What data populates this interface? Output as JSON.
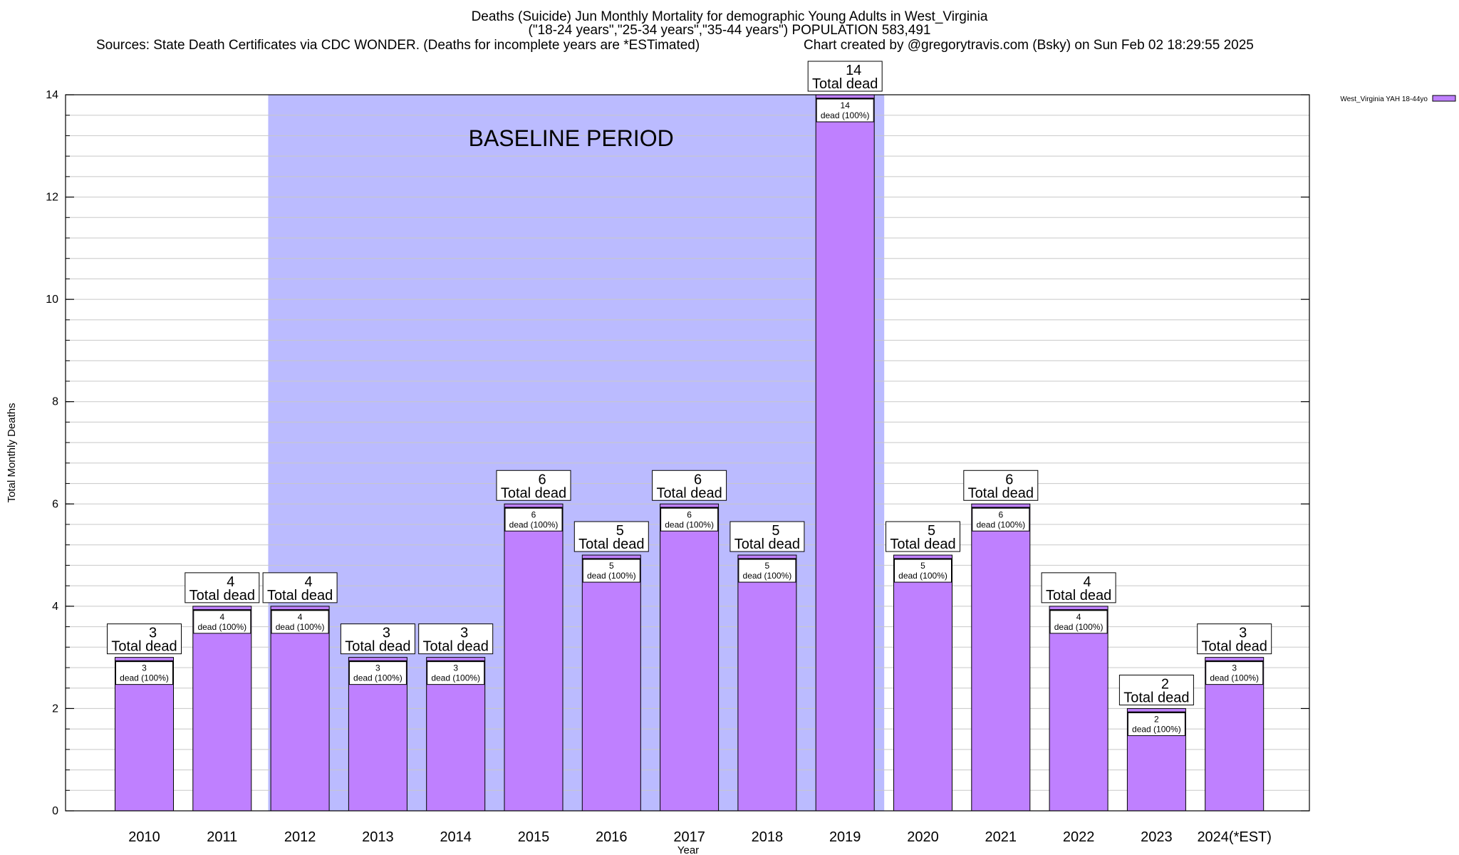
{
  "title": {
    "line1": "Deaths (Suicide) Jun Monthly Mortality for demographic Young Adults in West_Virginia",
    "line2": "(\"18-24 years\",\"25-34 years\",\"35-44 years\") POPULATION 583,491",
    "sources": "Sources: State Death Certificates via CDC WONDER. (Deaths for incomplete years are *ESTimated)",
    "credit": "Chart created by @gregorytravis.com (Bsky) on Sun Feb 02 18:29:55 2025"
  },
  "chart_data": {
    "type": "bar",
    "xlabel": "Year",
    "ylabel": "Total Monthly Deaths",
    "ylim": [
      0,
      14
    ],
    "yticks": [
      0,
      2,
      4,
      6,
      8,
      10,
      12,
      14
    ],
    "grid": true,
    "legend": {
      "position": "top-right",
      "label": "West_Virginia YAH 18-44yo"
    },
    "categories": [
      "2010",
      "2011",
      "2012",
      "2013",
      "2014",
      "2015",
      "2016",
      "2017",
      "2018",
      "2019",
      "2020",
      "2021",
      "2022",
      "2023",
      "2024(*EST)"
    ],
    "series": [
      {
        "name": "West_Virginia YAH 18-44yo",
        "values": [
          3,
          4,
          4,
          3,
          3,
          6,
          5,
          6,
          5,
          14,
          5,
          6,
          4,
          2,
          3
        ]
      }
    ],
    "total_label": "Total dead",
    "inner_labels": [
      "3",
      "4",
      "4",
      "3",
      "3",
      "6",
      "5",
      "6",
      "5",
      "14",
      "5",
      "6",
      "4",
      "2",
      "3"
    ],
    "inner_sublabel": "dead (100%)",
    "baseline": {
      "label": "BASELINE PERIOD",
      "from": "2012",
      "to": "2019"
    },
    "colors": {
      "bar": "#bf80ff",
      "baseline": "#bbbbff",
      "grid": "#c8c8c8"
    }
  }
}
